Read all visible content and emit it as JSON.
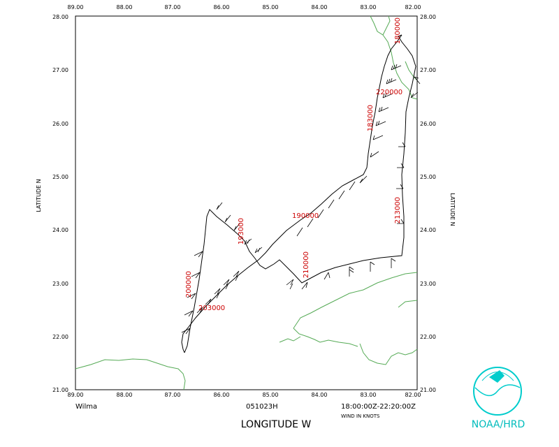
{
  "map": {
    "lon_ticks": [
      "89.00",
      "88.00",
      "87.00",
      "86.00",
      "85.00",
      "84.00",
      "83.00",
      "82.00"
    ],
    "lat_ticks": [
      "21.00",
      "22.00",
      "23.00",
      "24.00",
      "25.00",
      "26.00",
      "27.00",
      "28.00"
    ],
    "x_axis_label": "LONGITUDE    W",
    "y_axis_label": "LATITUDE    N",
    "storm_name": "Wilma",
    "date_code": "051023H",
    "time_range": "18:00:00Z-22:20:00Z",
    "wind_units": "WIND IN KNOTS",
    "agency": "NOAA/HRD",
    "coast_color": "#55aa55",
    "track_color": "#000000",
    "time_label_color": "#cc0000"
  },
  "time_labels": [
    "180000",
    "183000",
    "190000",
    "193000",
    "200000",
    "203000",
    "210000",
    "213000",
    "220000"
  ]
}
